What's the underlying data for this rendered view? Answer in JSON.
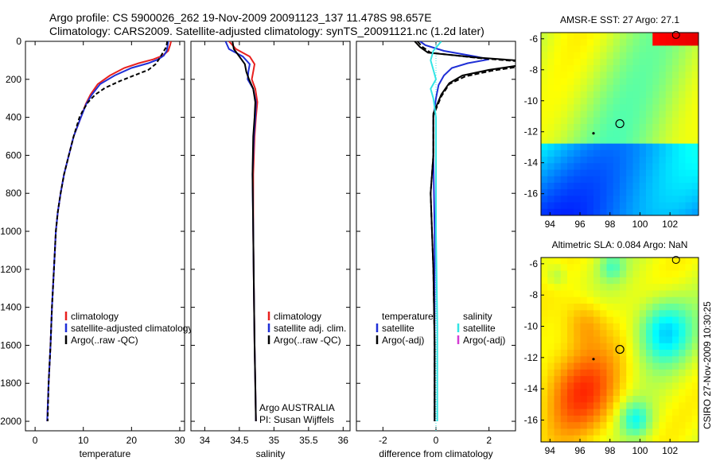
{
  "header": {
    "line1": "Argo profile: CS 5900026_262 19-Nov-2009 20091123_137 11.478S 98.657E",
    "line2": "Climatology: CARS2009. Satellite-adjusted climatology: synTS_20091121.nc (1.2d later)"
  },
  "side_label": "CSIRO 27-Nov-2009 10:30:25",
  "colors": {
    "clim": "#e8201e",
    "sat": "#1f2fd6",
    "argo": "#000000",
    "cyan": "#33e5e5",
    "magenta": "#d43bd4"
  },
  "chart_data": [
    {
      "id": "temperature",
      "type": "line",
      "xlabel": "temperature",
      "xlim": [
        -2,
        31
      ],
      "ylim": [
        2050,
        0
      ],
      "xticks": [
        0,
        10,
        20,
        30
      ],
      "yticks": [
        0,
        200,
        400,
        600,
        800,
        1000,
        1200,
        1400,
        1600,
        1800,
        2000
      ],
      "legend": [
        "climatology",
        "satellite-adjusted climatology",
        "Argo(..raw -QC)"
      ],
      "series": [
        {
          "name": "climatology",
          "color": "clim",
          "dash": "",
          "points": [
            [
              28.2,
              0
            ],
            [
              28.0,
              20
            ],
            [
              27.6,
              50
            ],
            [
              26.5,
              75
            ],
            [
              24.5,
              95
            ],
            [
              21.5,
              115
            ],
            [
              18.5,
              140
            ],
            [
              15.5,
              180
            ],
            [
              13.0,
              225
            ],
            [
              11.5,
              280
            ],
            [
              10.5,
              330
            ],
            [
              9.5,
              400
            ],
            [
              8.0,
              500
            ],
            [
              7.0,
              600
            ],
            [
              6.0,
              700
            ],
            [
              5.3,
              800
            ],
            [
              4.7,
              900
            ],
            [
              4.3,
              1000
            ],
            [
              3.9,
              1200
            ],
            [
              3.5,
              1400
            ],
            [
              3.2,
              1600
            ],
            [
              2.8,
              1800
            ],
            [
              2.5,
              2000
            ]
          ]
        },
        {
          "name": "satellite-adjusted climatology",
          "color": "sat",
          "dash": "",
          "points": [
            [
              27.6,
              0
            ],
            [
              27.5,
              20
            ],
            [
              27.3,
              50
            ],
            [
              26.7,
              75
            ],
            [
              25.5,
              95
            ],
            [
              23.5,
              115
            ],
            [
              20.0,
              140
            ],
            [
              16.5,
              180
            ],
            [
              13.5,
              225
            ],
            [
              11.8,
              280
            ],
            [
              10.6,
              330
            ],
            [
              9.5,
              400
            ],
            [
              8.0,
              500
            ],
            [
              7.0,
              600
            ],
            [
              6.0,
              700
            ],
            [
              5.3,
              800
            ],
            [
              4.7,
              900
            ],
            [
              4.3,
              1000
            ],
            [
              3.9,
              1200
            ],
            [
              3.5,
              1400
            ],
            [
              3.2,
              1600
            ],
            [
              2.8,
              1800
            ],
            [
              2.5,
              2000
            ]
          ]
        },
        {
          "name": "Argo(..raw -QC)",
          "color": "argo",
          "dash": "5,3",
          "points": [
            [
              27.4,
              0
            ],
            [
              27.2,
              30
            ],
            [
              26.5,
              60
            ],
            [
              25.8,
              90
            ],
            [
              25.0,
              120
            ],
            [
              23.5,
              150
            ],
            [
              20.5,
              180
            ],
            [
              17.5,
              210
            ],
            [
              14.5,
              245
            ],
            [
              12.5,
              280
            ],
            [
              11.0,
              320
            ],
            [
              10.0,
              360
            ],
            [
              9.2,
              400
            ],
            [
              8.0,
              500
            ],
            [
              7.0,
              600
            ],
            [
              6.0,
              700
            ],
            [
              5.3,
              800
            ],
            [
              4.7,
              900
            ],
            [
              4.3,
              1000
            ],
            [
              3.9,
              1200
            ],
            [
              3.5,
              1400
            ],
            [
              3.2,
              1600
            ],
            [
              2.8,
              1800
            ],
            [
              2.6,
              2000
            ]
          ]
        }
      ]
    },
    {
      "id": "salinity",
      "type": "line",
      "xlabel": "salinity",
      "xlim": [
        33.8,
        36.1
      ],
      "ylim": [
        2050,
        0
      ],
      "xticks": [
        34,
        34.5,
        35,
        35.5,
        36
      ],
      "yticks": [],
      "legend": [
        "climatology",
        "satellite adj. clim.",
        "Argo(..raw -QC)"
      ],
      "annotation": [
        "Argo AUSTRALIA",
        "PI: Susan Wijffels"
      ],
      "series": [
        {
          "name": "climatology",
          "color": "clim",
          "dash": "",
          "points": [
            [
              34.35,
              0
            ],
            [
              34.45,
              40
            ],
            [
              34.65,
              80
            ],
            [
              34.72,
              120
            ],
            [
              34.7,
              160
            ],
            [
              34.68,
              200
            ],
            [
              34.73,
              250
            ],
            [
              34.76,
              320
            ],
            [
              34.74,
              400
            ],
            [
              34.72,
              500
            ],
            [
              34.7,
              700
            ],
            [
              34.7,
              1000
            ],
            [
              34.71,
              1300
            ],
            [
              34.72,
              1600
            ],
            [
              34.73,
              1800
            ],
            [
              34.74,
              2000
            ]
          ]
        },
        {
          "name": "satellite adj. clim.",
          "color": "sat",
          "dash": "",
          "points": [
            [
              34.3,
              0
            ],
            [
              34.35,
              40
            ],
            [
              34.55,
              80
            ],
            [
              34.65,
              120
            ],
            [
              34.63,
              160
            ],
            [
              34.62,
              200
            ],
            [
              34.7,
              250
            ],
            [
              34.74,
              320
            ],
            [
              34.73,
              400
            ],
            [
              34.71,
              500
            ],
            [
              34.69,
              700
            ],
            [
              34.7,
              1000
            ],
            [
              34.71,
              1300
            ],
            [
              34.72,
              1600
            ],
            [
              34.73,
              1800
            ],
            [
              34.74,
              2000
            ]
          ]
        },
        {
          "name": "Argo(..raw -QC)",
          "color": "argo",
          "dash": "",
          "points": [
            [
              34.4,
              0
            ],
            [
              34.42,
              40
            ],
            [
              34.5,
              80
            ],
            [
              34.58,
              120
            ],
            [
              34.6,
              160
            ],
            [
              34.64,
              200
            ],
            [
              34.7,
              250
            ],
            [
              34.73,
              320
            ],
            [
              34.72,
              400
            ],
            [
              34.7,
              500
            ],
            [
              34.69,
              700
            ],
            [
              34.7,
              1000
            ],
            [
              34.71,
              1300
            ],
            [
              34.72,
              1600
            ],
            [
              34.73,
              1800
            ],
            [
              34.74,
              2000
            ]
          ]
        }
      ]
    },
    {
      "id": "difference",
      "type": "line",
      "xlabel": "difference from climatology",
      "xlim": [
        -3,
        3
      ],
      "ylim": [
        2050,
        0
      ],
      "xticks": [
        -2,
        0,
        2
      ],
      "yticks": [],
      "legend_left_title": "temperature",
      "legend_left": [
        "satellite",
        "Argo(-adj)"
      ],
      "legend_right_title": "salinity",
      "legend_right": [
        "satellite",
        "Argo(-adj)"
      ],
      "series": [
        {
          "name": "temperature satellite",
          "color": "sat",
          "dash": "",
          "points": [
            [
              -0.6,
              0
            ],
            [
              -0.4,
              20
            ],
            [
              0.3,
              50
            ],
            [
              1.5,
              80
            ],
            [
              2.0,
              95
            ],
            [
              1.2,
              115
            ],
            [
              0.6,
              140
            ],
            [
              0.3,
              180
            ],
            [
              0.1,
              230
            ],
            [
              0.0,
              300
            ],
            [
              -0.1,
              400
            ],
            [
              -0.1,
              600
            ],
            [
              -0.05,
              1000
            ],
            [
              -0.05,
              1500
            ],
            [
              -0.05,
              2000
            ]
          ]
        },
        {
          "name": "temperature Argo(-adj)",
          "color": "argo",
          "dash": "",
          "points": [
            [
              -0.8,
              0
            ],
            [
              -0.6,
              30
            ],
            [
              -0.3,
              60
            ],
            [
              1.5,
              85
            ],
            [
              3.0,
              100
            ],
            [
              3.2,
              125
            ],
            [
              2.0,
              150
            ],
            [
              1.0,
              180
            ],
            [
              0.5,
              220
            ],
            [
              0.2,
              280
            ],
            [
              -0.1,
              380
            ],
            [
              -0.1,
              600
            ],
            [
              -0.2,
              800
            ],
            [
              -0.1,
              1200
            ],
            [
              -0.05,
              1600
            ],
            [
              -0.05,
              2000
            ]
          ]
        },
        {
          "name": "temperature Argo dashed",
          "color": "argo",
          "dash": "6,3",
          "points": [
            [
              -0.7,
              0
            ],
            [
              -0.5,
              30
            ],
            [
              -0.2,
              60
            ],
            [
              1.6,
              88
            ],
            [
              3.1,
              105
            ],
            [
              3.3,
              130
            ],
            [
              2.1,
              155
            ],
            [
              1.1,
              185
            ],
            [
              0.5,
              225
            ],
            [
              0.2,
              290
            ],
            [
              -0.1,
              390
            ],
            [
              -0.1,
              600
            ],
            [
              -0.2,
              800
            ],
            [
              -0.1,
              1200
            ],
            [
              -0.05,
              1600
            ],
            [
              -0.05,
              2000
            ]
          ]
        },
        {
          "name": "salinity satellite",
          "color": "cyan",
          "dash": "",
          "points": [
            [
              0.2,
              0
            ],
            [
              -0.1,
              50
            ],
            [
              -0.2,
              100
            ],
            [
              -0.1,
              150
            ],
            [
              0.0,
              200
            ],
            [
              -0.2,
              250
            ],
            [
              -0.1,
              300
            ],
            [
              0.0,
              400
            ],
            [
              0.0,
              700
            ],
            [
              0.0,
              1000
            ],
            [
              0.05,
              1500
            ],
            [
              0.05,
              2000
            ]
          ]
        }
      ]
    }
  ],
  "maps": [
    {
      "id": "sst",
      "title": "AMSR-E SST: 27 Argo: 27.1",
      "xticks": [
        94,
        96,
        98,
        100,
        102
      ],
      "yticks": [
        -6,
        -8,
        -10,
        -12,
        -14,
        -16
      ]
    },
    {
      "id": "sla",
      "title": "Altimetric SLA: 0.084 Argo: NaN",
      "xticks": [
        94,
        96,
        98,
        100,
        102
      ],
      "yticks": [
        -6,
        -8,
        -10,
        -12,
        -14,
        -16
      ]
    }
  ]
}
